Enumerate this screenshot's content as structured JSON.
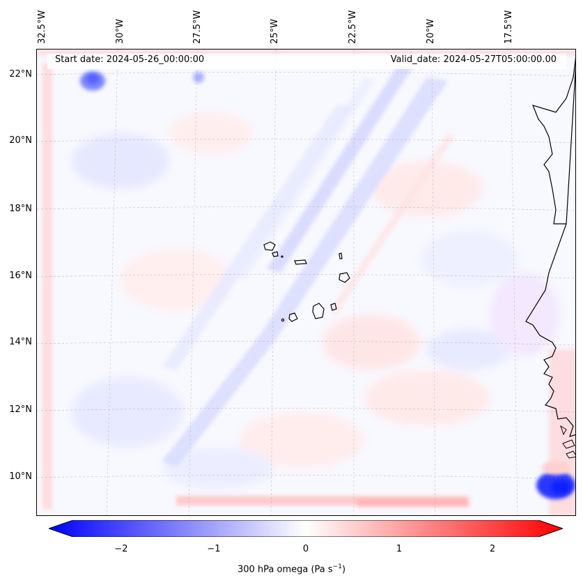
{
  "header": {
    "start_date": "Start date: 2024-05-26_00:00:00",
    "valid_date": "Valid_date: 2024-05-27T05:00:00.00"
  },
  "longitude_labels": [
    "32.5°W",
    "30°W",
    "27.5°W",
    "25°W",
    "22.5°W",
    "20°W",
    "17.5°W"
  ],
  "latitude_labels": [
    "22°N",
    "20°N",
    "18°N",
    "16°N",
    "14°N",
    "12°N",
    "10°N"
  ],
  "colorbar": {
    "ticks": [
      "−2",
      "−1",
      "0",
      "1",
      "2"
    ],
    "min": -2.5,
    "max": 2.5,
    "label_prefix": "300 hPa omega (Pa s",
    "label_exp": "−1",
    "label_suffix": ")"
  },
  "colors": {
    "negative": "#0000ff",
    "neutral": "#ffffff",
    "positive": "#ff0000",
    "coastline": "#000000"
  }
}
